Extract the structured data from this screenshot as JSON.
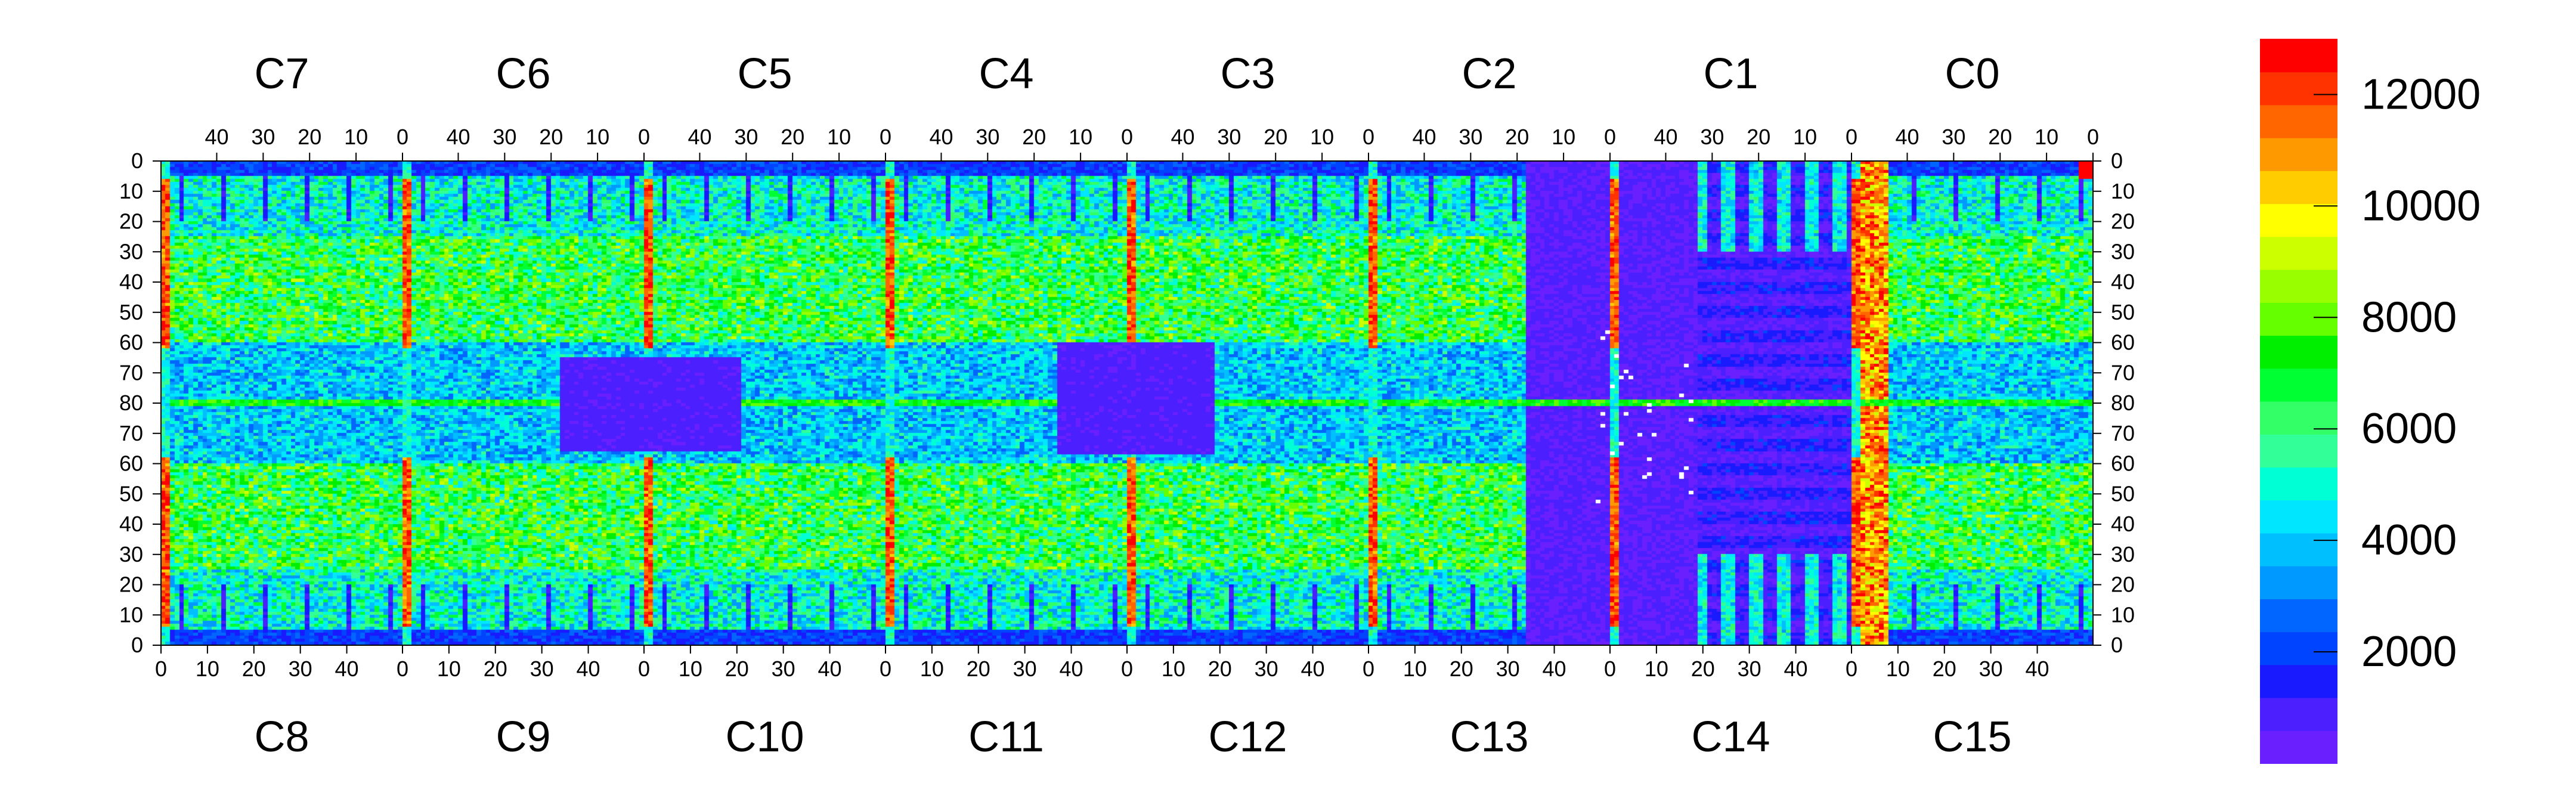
{
  "chart_data": {
    "type": "heatmap",
    "title": "",
    "xlabel": "",
    "ylabel": "",
    "colorbar": {
      "range": [
        0,
        13000
      ],
      "ticks": [
        2000,
        4000,
        6000,
        8000,
        10000,
        12000
      ],
      "tick_labels": [
        "2000",
        "4000",
        "6000",
        "8000",
        "10000",
        "12000"
      ],
      "colors": [
        "#6a1fff",
        "#4b1fff",
        "#1a1aff",
        "#0044ff",
        "#0066ff",
        "#0099ff",
        "#00bfff",
        "#00e6ff",
        "#00ffd5",
        "#33ff99",
        "#33ff66",
        "#00ff33",
        "#00ee00",
        "#66ff00",
        "#99ff00",
        "#ccff00",
        "#ffff00",
        "#ffcc00",
        "#ff9900",
        "#ff6600",
        "#ff3300",
        "#ff0000"
      ]
    },
    "top_chips": [
      "C7",
      "C6",
      "C5",
      "C4",
      "C3",
      "C2",
      "C1",
      "C0"
    ],
    "bottom_chips": [
      "C8",
      "C9",
      "C10",
      "C11",
      "C12",
      "C13",
      "C14",
      "C15"
    ],
    "top_x_ticks": [
      "40",
      "30",
      "20",
      "10",
      "0"
    ],
    "bottom_x_ticks": [
      "0",
      "10",
      "20",
      "30",
      "40"
    ],
    "y_ticks_top_half": [
      "0",
      "10",
      "20",
      "30",
      "40",
      "50",
      "60",
      "70",
      "80"
    ],
    "y_ticks_bottom_half": [
      "70",
      "60",
      "50",
      "40",
      "30",
      "20",
      "10",
      "0"
    ],
    "columns_per_chip": 52,
    "rows_per_half": 80,
    "regions": {
      "baseline_description": "most pixels 4000-8000 with periodic structures",
      "hot_columns": [
        0,
        52,
        104,
        156,
        208,
        260,
        312,
        364,
        416
      ],
      "dead_region_columns": [
        294,
        330
      ],
      "low_blocks": [
        {
          "cols": [
            86,
            124
          ],
          "rows": [
            65,
            95
          ],
          "value": 500
        },
        {
          "cols": [
            193,
            226
          ],
          "rows": [
            60,
            96
          ],
          "value": 500
        }
      ]
    }
  }
}
